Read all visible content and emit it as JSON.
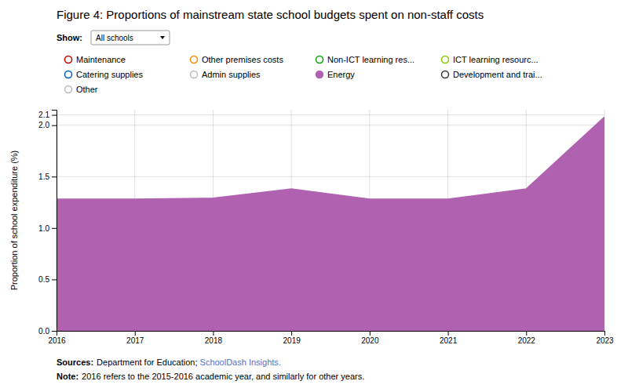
{
  "chart_data": {
    "type": "area",
    "title": "Figure 4: Proportions of mainstream state school budgets spent on non-staff costs",
    "control": {
      "label": "Show:",
      "value": "All schools"
    },
    "x": [
      2016,
      2017,
      2018,
      2019,
      2020,
      2021,
      2022,
      2023
    ],
    "series": [
      {
        "name": "Energy",
        "color": "#b062b0",
        "values": [
          1.28,
          1.28,
          1.29,
          1.38,
          1.28,
          1.28,
          1.38,
          2.08
        ]
      }
    ],
    "legend_entries": [
      {
        "name": "Maintenance",
        "color": "#cc0000",
        "marker": "open-circle"
      },
      {
        "name": "Other premises costs",
        "color": "#ff8800",
        "marker": "open-circle"
      },
      {
        "name": "Non-ICT learning res...",
        "color": "#00aa00",
        "marker": "open-circle"
      },
      {
        "name": "ICT learning resourc...",
        "color": "#88cc00",
        "marker": "open-circle"
      },
      {
        "name": "Catering supplies",
        "color": "#0055cc",
        "marker": "open-circle"
      },
      {
        "name": "Admin supplies",
        "color": "#bbbbbb",
        "marker": "open-circle"
      },
      {
        "name": "Energy",
        "color": "#b062b0",
        "marker": "circle"
      },
      {
        "name": "Development and trai...",
        "color": "#333333",
        "marker": "open-circle"
      },
      {
        "name": "Other",
        "color": "#bbbbbb",
        "marker": "open-circle"
      }
    ],
    "y_label": "Proportion of school expenditure (%)",
    "xlim": [
      2016,
      2023
    ],
    "xticks": [
      2016,
      2017,
      2018,
      2019,
      2020,
      2021,
      2022,
      2023
    ],
    "ylim": [
      0,
      2.15
    ],
    "yticks": [
      {
        "value": 0.0,
        "label": "0.0"
      },
      0.5,
      {
        "value": 1.0,
        "label": "1.0"
      },
      1.5,
      {
        "value": 2.0,
        "label": "2.0"
      },
      2.1
    ],
    "grid": true,
    "annotations": [
      {
        "heading": "Sources:",
        "text": "Department for Education; ",
        "link": "SchoolDash Insights.",
        "color": "#4477cc"
      },
      {
        "heading": "Note:",
        "text": "2016 refers to the 2015-2016 academic year, and similarly for other years."
      }
    ]
  }
}
